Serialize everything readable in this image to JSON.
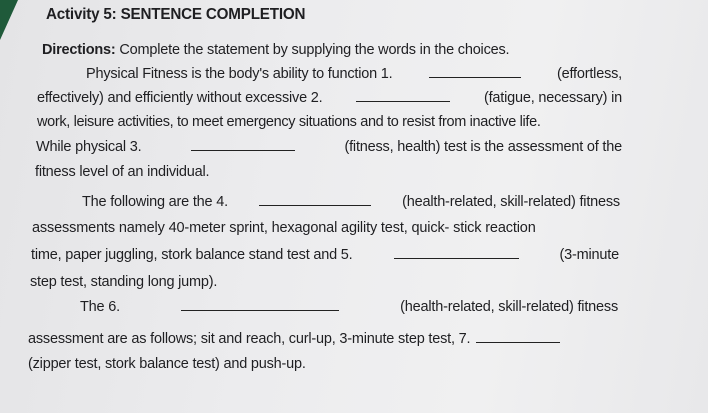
{
  "title": "Activity 5: SENTENCE COMPLETION",
  "directions": {
    "label": "Directions:",
    "text": " Complete the statement by supplying the words in the choices."
  },
  "lines": [
    [
      "Physical Fitness is the body's ability to function 1.",
      "(effortless,"
    ],
    [
      "effectively) and efficiently without excessive 2.",
      "(fatigue, necessary) in"
    ],
    [
      "work, leisure activities, to meet emergency situations and to resist from inactive life."
    ],
    [
      "While physical 3.",
      "(fitness, health) test is the assessment of the"
    ],
    [
      "fitness level of an individual."
    ],
    [
      "The following are the 4.",
      "(health-related, skill-related) fitness"
    ],
    [
      "assessments namely 40-meter sprint, hexagonal agility test, quick- stick reaction"
    ],
    [
      "time, paper juggling, stork balance stand test and 5.",
      "(3-minute"
    ],
    [
      "step test, standing long jump)."
    ],
    [
      "The 6.",
      "(health-related, skill-related) fitness"
    ],
    [
      "assessment are as follows; sit and reach, curl-up, 3-minute step test, 7."
    ],
    [
      "(zipper test, stork balance test) and push-up."
    ]
  ]
}
